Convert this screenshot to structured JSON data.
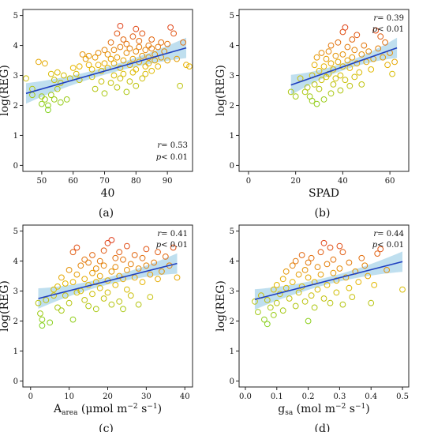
{
  "colors": {
    "point_low": "#7ed321",
    "point_mid": "#e6b800",
    "point_high": "#e03c1a",
    "fit_line": "#1f3fbf",
    "confidence_band": "#a9d4ea"
  },
  "chart_data": [
    {
      "type": "scatter",
      "panel_label": "(a)",
      "xlabel": "40",
      "ylabel": "log(REG)",
      "xlim": [
        44,
        98
      ],
      "ylim": [
        -0.2,
        5.2
      ],
      "xticks": [
        "50",
        "60",
        "70",
        "80",
        "90"
      ],
      "yticks": [
        "0",
        "1",
        "2",
        "3",
        "4",
        "5"
      ],
      "grid": false,
      "stats": {
        "r_label": "r",
        "r_value": "= 0.53",
        "p_label": "p",
        "p_value": "< 0.01",
        "position": "bottom-right"
      },
      "fit": {
        "x": [
          45,
          96
        ],
        "y": [
          2.4,
          3.92
        ]
      },
      "points": [
        [
          45,
          2.9
        ],
        [
          47,
          2.55
        ],
        [
          47,
          2.35
        ],
        [
          49,
          3.45
        ],
        [
          50,
          2.3
        ],
        [
          50,
          2.05
        ],
        [
          51,
          3.4
        ],
        [
          51,
          2.2
        ],
        [
          52,
          1.85
        ],
        [
          52,
          2.0
        ],
        [
          53,
          3.05
        ],
        [
          53,
          2.35
        ],
        [
          54,
          2.85
        ],
        [
          54,
          2.2
        ],
        [
          55,
          3.1
        ],
        [
          55,
          2.55
        ],
        [
          56,
          2.75
        ],
        [
          56,
          2.1
        ],
        [
          57,
          3.0
        ],
        [
          58,
          2.2
        ],
        [
          59,
          2.9
        ],
        [
          60,
          3.25
        ],
        [
          61,
          3.05
        ],
        [
          62,
          3.3
        ],
        [
          62,
          2.85
        ],
        [
          63,
          3.7
        ],
        [
          64,
          3.55
        ],
        [
          65,
          3.35
        ],
        [
          65,
          3.65
        ],
        [
          66,
          3.2
        ],
        [
          66,
          2.95
        ],
        [
          67,
          3.6
        ],
        [
          67,
          2.55
        ],
        [
          68,
          3.75
        ],
        [
          68,
          3.35
        ],
        [
          69,
          3.15
        ],
        [
          69,
          2.8
        ],
        [
          70,
          3.85
        ],
        [
          70,
          3.4
        ],
        [
          70,
          2.4
        ],
        [
          71,
          3.25
        ],
        [
          71,
          3.7
        ],
        [
          72,
          2.75
        ],
        [
          72,
          3.55
        ],
        [
          72,
          4.1
        ],
        [
          73,
          3.0
        ],
        [
          73,
          3.4
        ],
        [
          73,
          3.85
        ],
        [
          74,
          3.6
        ],
        [
          74,
          2.6
        ],
        [
          74,
          4.4
        ],
        [
          75,
          3.25
        ],
        [
          75,
          3.95
        ],
        [
          75,
          2.9
        ],
        [
          75,
          4.65
        ],
        [
          76,
          3.5
        ],
        [
          76,
          4.2
        ],
        [
          76,
          3.05
        ],
        [
          77,
          3.75
        ],
        [
          77,
          2.45
        ],
        [
          77,
          4.05
        ],
        [
          78,
          3.35
        ],
        [
          78,
          3.9
        ],
        [
          78,
          2.8
        ],
        [
          79,
          4.3
        ],
        [
          79,
          3.55
        ],
        [
          79,
          3.1
        ],
        [
          80,
          3.8
        ],
        [
          80,
          4.55
        ],
        [
          80,
          3.2
        ],
        [
          80,
          2.65
        ],
        [
          81,
          3.95
        ],
        [
          81,
          3.45
        ],
        [
          81,
          4.15
        ],
        [
          82,
          3.65
        ],
        [
          82,
          2.9
        ],
        [
          82,
          4.4
        ],
        [
          83,
          3.3
        ],
        [
          83,
          3.85
        ],
        [
          83,
          3.05
        ],
        [
          84,
          4.0
        ],
        [
          84,
          3.6
        ],
        [
          84,
          3.4
        ],
        [
          85,
          3.9
        ],
        [
          85,
          4.2
        ],
        [
          85,
          3.15
        ],
        [
          86,
          3.7
        ],
        [
          86,
          3.5
        ],
        [
          87,
          3.95
        ],
        [
          87,
          3.3
        ],
        [
          88,
          3.6
        ],
        [
          88,
          4.1
        ],
        [
          89,
          3.8
        ],
        [
          90,
          4.05
        ],
        [
          90,
          3.5
        ],
        [
          91,
          4.6
        ],
        [
          92,
          4.4
        ],
        [
          93,
          3.55
        ],
        [
          94,
          2.65
        ],
        [
          95,
          4.1
        ],
        [
          96,
          3.35
        ],
        [
          97,
          3.3
        ]
      ]
    },
    {
      "type": "scatter",
      "panel_label": "(b)",
      "xlabel": "SPAD",
      "ylabel": "log(REG)",
      "xlim": [
        -4,
        68
      ],
      "ylim": [
        -0.2,
        5.2
      ],
      "xticks": [
        "0",
        "20",
        "40",
        "60"
      ],
      "yticks": [
        "0",
        "1",
        "2",
        "3",
        "4",
        "5"
      ],
      "grid": false,
      "stats": {
        "r_label": "r",
        "r_value": "= 0.39",
        "p_label": "p",
        "p_value": "< 0.01",
        "position": "top-right"
      },
      "fit": {
        "x": [
          18,
          63
        ],
        "y": [
          2.68,
          3.92
        ]
      },
      "points": [
        [
          18,
          2.45
        ],
        [
          20,
          2.3
        ],
        [
          22,
          2.9
        ],
        [
          24,
          2.45
        ],
        [
          25,
          2.6
        ],
        [
          26,
          2.3
        ],
        [
          27,
          2.15
        ],
        [
          27,
          3.0
        ],
        [
          28,
          2.7
        ],
        [
          28,
          3.35
        ],
        [
          29,
          2.05
        ],
        [
          29,
          3.6
        ],
        [
          30,
          3.15
        ],
        [
          30,
          2.55
        ],
        [
          31,
          3.75
        ],
        [
          31,
          2.85
        ],
        [
          32,
          3.3
        ],
        [
          32,
          2.2
        ],
        [
          33,
          3.55
        ],
        [
          33,
          2.95
        ],
        [
          34,
          3.8
        ],
        [
          34,
          3.05
        ],
        [
          35,
          2.4
        ],
        [
          35,
          3.4
        ],
        [
          35,
          4.0
        ],
        [
          36,
          3.2
        ],
        [
          36,
          2.7
        ],
        [
          37,
          3.65
        ],
        [
          37,
          2.9
        ],
        [
          38,
          3.45
        ],
        [
          38,
          4.1
        ],
        [
          39,
          3.0
        ],
        [
          39,
          2.5
        ],
        [
          40,
          3.7
        ],
        [
          40,
          4.45
        ],
        [
          40,
          3.3
        ],
        [
          41,
          4.6
        ],
        [
          41,
          2.85
        ],
        [
          42,
          3.5
        ],
        [
          42,
          3.95
        ],
        [
          43,
          2.65
        ],
        [
          43,
          3.25
        ],
        [
          44,
          4.2
        ],
        [
          44,
          3.6
        ],
        [
          45,
          3.85
        ],
        [
          45,
          2.95
        ],
        [
          46,
          3.4
        ],
        [
          46,
          4.35
        ],
        [
          47,
          3.1
        ],
        [
          48,
          3.7
        ],
        [
          48,
          2.7
        ],
        [
          49,
          4.0
        ],
        [
          50,
          3.45
        ],
        [
          51,
          3.8
        ],
        [
          52,
          3.2
        ],
        [
          53,
          3.55
        ],
        [
          54,
          4.5
        ],
        [
          55,
          3.9
        ],
        [
          56,
          4.3
        ],
        [
          57,
          3.6
        ],
        [
          58,
          4.1
        ],
        [
          59,
          3.35
        ],
        [
          60,
          3.75
        ],
        [
          61,
          3.05
        ],
        [
          62,
          3.45
        ]
      ]
    },
    {
      "type": "scatter",
      "panel_label": "(c)",
      "xlabel_base": "A",
      "xlabel_sub": "area",
      "xlabel_unit": " (μmol m",
      "xlabel_sup1": "−2",
      "xlabel_mid": " s",
      "xlabel_sup2": "−1",
      "xlabel_end": ")",
      "ylabel": "log(REG)",
      "xlim": [
        -2,
        42
      ],
      "ylim": [
        -0.2,
        5.2
      ],
      "xticks": [
        "0",
        "10",
        "20",
        "30",
        "40"
      ],
      "yticks": [
        "0",
        "1",
        "2",
        "3",
        "4",
        "5"
      ],
      "grid": false,
      "stats": {
        "r_label": "r",
        "r_value": "= 0.41",
        "p_label": "p",
        "p_value": "< 0.01",
        "position": "top-right"
      },
      "fit": {
        "x": [
          2,
          38
        ],
        "y": [
          2.75,
          3.92
        ]
      },
      "points": [
        [
          2,
          2.6
        ],
        [
          2.5,
          2.25
        ],
        [
          3,
          1.85
        ],
        [
          3,
          2.05
        ],
        [
          4,
          2.7
        ],
        [
          5,
          1.95
        ],
        [
          6,
          2.85
        ],
        [
          6,
          3.05
        ],
        [
          7,
          2.45
        ],
        [
          7,
          3.15
        ],
        [
          8,
          2.35
        ],
        [
          8,
          3.45
        ],
        [
          9,
          2.85
        ],
        [
          9,
          3.25
        ],
        [
          10,
          3.7
        ],
        [
          10,
          2.6
        ],
        [
          11,
          2.05
        ],
        [
          11,
          3.3
        ],
        [
          11,
          4.3
        ],
        [
          12,
          3.55
        ],
        [
          12,
          2.95
        ],
        [
          12,
          4.45
        ],
        [
          13,
          3.0
        ],
        [
          13,
          3.85
        ],
        [
          14,
          2.7
        ],
        [
          14,
          3.4
        ],
        [
          14,
          4.05
        ],
        [
          15,
          3.2
        ],
        [
          15,
          2.5
        ],
        [
          15,
          3.95
        ],
        [
          16,
          3.6
        ],
        [
          16,
          2.9
        ],
        [
          16,
          4.2
        ],
        [
          17,
          3.3
        ],
        [
          17,
          3.75
        ],
        [
          17,
          2.4
        ],
        [
          18,
          4.0
        ],
        [
          18,
          3.1
        ],
        [
          18,
          3.5
        ],
        [
          19,
          3.85
        ],
        [
          19,
          2.75
        ],
        [
          19,
          4.35
        ],
        [
          20,
          4.6
        ],
        [
          20,
          3.35
        ],
        [
          20,
          2.95
        ],
        [
          21,
          4.7
        ],
        [
          21,
          3.65
        ],
        [
          21,
          2.55
        ],
        [
          22,
          4.1
        ],
        [
          22,
          3.8
        ],
        [
          22,
          3.2
        ],
        [
          23,
          3.5
        ],
        [
          23,
          2.65
        ],
        [
          23,
          4.3
        ],
        [
          24,
          4.05
        ],
        [
          24,
          3.4
        ],
        [
          24,
          2.4
        ],
        [
          25,
          3.7
        ],
        [
          25,
          3.05
        ],
        [
          25,
          4.5
        ],
        [
          26,
          3.9
        ],
        [
          26,
          2.85
        ],
        [
          27,
          4.2
        ],
        [
          27,
          3.45
        ],
        [
          28,
          3.75
        ],
        [
          28,
          2.55
        ],
        [
          29,
          4.1
        ],
        [
          29,
          3.3
        ],
        [
          30,
          3.85
        ],
        [
          30,
          4.4
        ],
        [
          31,
          3.55
        ],
        [
          31,
          2.8
        ],
        [
          32,
          3.95
        ],
        [
          33,
          4.3
        ],
        [
          33,
          3.4
        ],
        [
          34,
          3.65
        ],
        [
          35,
          4.15
        ],
        [
          36,
          3.85
        ],
        [
          37,
          4.45
        ],
        [
          38,
          3.45
        ]
      ]
    },
    {
      "type": "scatter",
      "panel_label": "(d)",
      "xlabel_base": "g",
      "xlabel_sub": "sa",
      "xlabel_unit": " (mol m",
      "xlabel_sup1": "−2",
      "xlabel_mid": " s",
      "xlabel_sup2": "−1",
      "xlabel_end": ")",
      "ylabel": "log(REG)",
      "xlim": [
        -0.02,
        0.52
      ],
      "ylim": [
        -0.2,
        5.2
      ],
      "xticks": [
        "0.0",
        "0.1",
        "0.2",
        "0.3",
        "0.4",
        "0.5"
      ],
      "yticks": [
        "0",
        "1",
        "2",
        "3",
        "4",
        "5"
      ],
      "grid": false,
      "stats": {
        "r_label": "r",
        "r_value": "= 0.44",
        "p_label": "p",
        "p_value": "< 0.01",
        "position": "top-right"
      },
      "fit": {
        "x": [
          0.03,
          0.5
        ],
        "y": [
          2.72,
          3.98
        ]
      },
      "points": [
        [
          0.03,
          2.65
        ],
        [
          0.04,
          2.3
        ],
        [
          0.05,
          2.85
        ],
        [
          0.06,
          2.05
        ],
        [
          0.07,
          1.9
        ],
        [
          0.07,
          2.7
        ],
        [
          0.08,
          2.45
        ],
        [
          0.09,
          3.05
        ],
        [
          0.09,
          2.2
        ],
        [
          0.1,
          3.2
        ],
        [
          0.1,
          2.6
        ],
        [
          0.11,
          2.9
        ],
        [
          0.12,
          3.4
        ],
        [
          0.12,
          2.35
        ],
        [
          0.13,
          3.1
        ],
        [
          0.13,
          3.65
        ],
        [
          0.14,
          2.75
        ],
        [
          0.15,
          3.85
        ],
        [
          0.15,
          3.3
        ],
        [
          0.16,
          2.5
        ],
        [
          0.16,
          4.0
        ],
        [
          0.17,
          3.55
        ],
        [
          0.17,
          2.95
        ],
        [
          0.18,
          4.2
        ],
        [
          0.18,
          3.15
        ],
        [
          0.19,
          3.7
        ],
        [
          0.19,
          2.65
        ],
        [
          0.2,
          3.45
        ],
        [
          0.2,
          2.0
        ],
        [
          0.2,
          3.95
        ],
        [
          0.21,
          2.85
        ],
        [
          0.21,
          4.1
        ],
        [
          0.22,
          3.3
        ],
        [
          0.22,
          2.45
        ],
        [
          0.23,
          3.8
        ],
        [
          0.23,
          3.05
        ],
        [
          0.24,
          4.3
        ],
        [
          0.24,
          3.55
        ],
        [
          0.25,
          2.75
        ],
        [
          0.25,
          4.6
        ],
        [
          0.26,
          3.2
        ],
        [
          0.26,
          3.9
        ],
        [
          0.27,
          4.45
        ],
        [
          0.27,
          2.6
        ],
        [
          0.28,
          3.6
        ],
        [
          0.28,
          4.05
        ],
        [
          0.29,
          3.35
        ],
        [
          0.29,
          2.95
        ],
        [
          0.3,
          4.5
        ],
        [
          0.3,
          3.75
        ],
        [
          0.31,
          4.3
        ],
        [
          0.31,
          2.55
        ],
        [
          0.32,
          3.45
        ],
        [
          0.33,
          3.95
        ],
        [
          0.33,
          3.1
        ],
        [
          0.34,
          2.8
        ],
        [
          0.35,
          3.65
        ],
        [
          0.36,
          3.3
        ],
        [
          0.37,
          4.1
        ],
        [
          0.38,
          3.85
        ],
        [
          0.39,
          3.5
        ],
        [
          0.4,
          2.6
        ],
        [
          0.41,
          3.2
        ],
        [
          0.42,
          4.25
        ],
        [
          0.43,
          4.4
        ],
        [
          0.45,
          3.7
        ],
        [
          0.5,
          3.05
        ]
      ]
    }
  ]
}
